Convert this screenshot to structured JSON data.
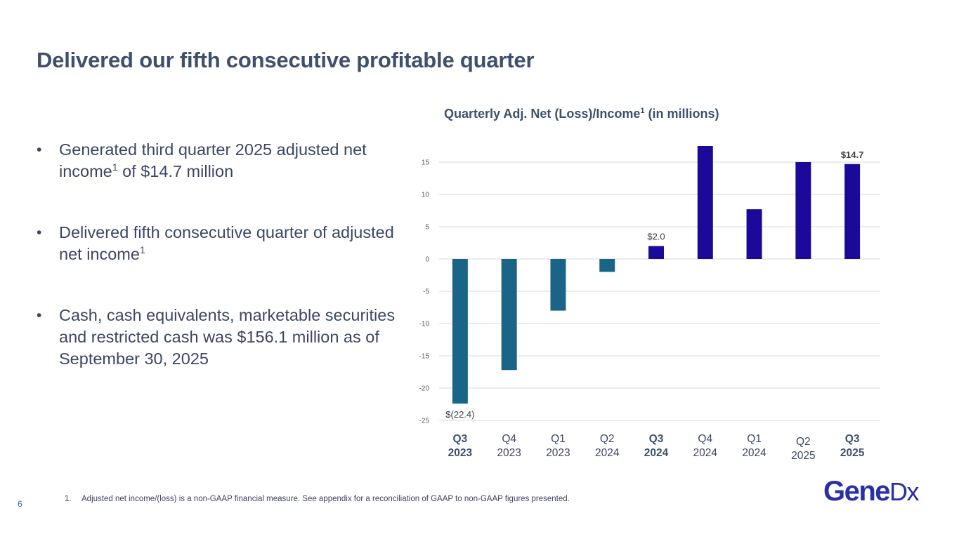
{
  "slide": {
    "title": "Delivered our fifth consecutive profitable quarter",
    "page_number": "6"
  },
  "bullets": [
    {
      "text": "Generated third quarter 2025 adjusted net income",
      "sup": "1",
      "tail": " of $14.7 million"
    },
    {
      "text": "Delivered fifth consecutive quarter of adjusted net income",
      "sup": "1",
      "tail": ""
    },
    {
      "text": "Cash, cash equivalents, marketable securities and restricted cash was $156.1 million as of September 30, 2025",
      "sup": "",
      "tail": ""
    }
  ],
  "chart_title": {
    "main": "Quarterly Adj. Net (Loss)/Income",
    "sup": "1",
    "tail": " (in millions)"
  },
  "footnote": {
    "number": "1.",
    "text": "Adjusted net income/(loss) is a non-GAAP financial measure. See appendix for a reconciliation of GAAP to non-GAAP figures presented."
  },
  "logo": {
    "main": "Gene",
    "tail": "Dx"
  },
  "colors": {
    "loss_bar": "#1a6587",
    "income_bar": "#1b0a99",
    "grid": "#d9d9d9",
    "axis_text": "#595959",
    "category_text": "#3c4664"
  },
  "chart_data": {
    "type": "bar",
    "title": "Quarterly Adj. Net (Loss)/Income (in millions)",
    "ylim": [
      -25,
      15
    ],
    "yticks": [
      15,
      10,
      5,
      0,
      -5,
      -10,
      -15,
      -20,
      -25
    ],
    "grid": true,
    "categories": [
      {
        "quarter": "Q3",
        "year": "2023",
        "bold": true
      },
      {
        "quarter": "Q4",
        "year": "2023",
        "bold": false
      },
      {
        "quarter": "Q1",
        "year": "2023",
        "bold": false
      },
      {
        "quarter": "Q2",
        "year": "2024",
        "bold": false
      },
      {
        "quarter": "Q3",
        "year": "2024",
        "bold": true
      },
      {
        "quarter": "Q4",
        "year": "2024",
        "bold": false
      },
      {
        "quarter": "Q1",
        "year": "2024",
        "bold": false
      },
      {
        "quarter": "Q2",
        "year": "2025",
        "bold": false
      },
      {
        "quarter": "Q3",
        "year": "2025",
        "bold": true
      }
    ],
    "values": [
      -22.4,
      -17.2,
      -8.0,
      -2.0,
      2.0,
      17.5,
      7.7,
      15.0,
      14.7
    ],
    "data_labels": [
      {
        "index": 0,
        "text": "$(22.4)",
        "bold": false
      },
      {
        "index": 4,
        "text": "$2.0",
        "bold": false
      },
      {
        "index": 8,
        "text": "$14.7",
        "bold": true
      }
    ]
  }
}
